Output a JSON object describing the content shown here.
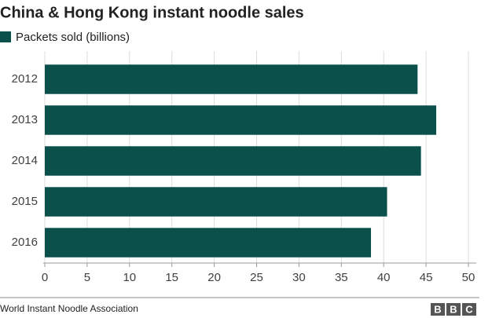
{
  "chart_data": {
    "type": "hbar",
    "title": "China & Hong Kong instant noodle sales",
    "categories": [
      "2012",
      "2013",
      "2014",
      "2015",
      "2016"
    ],
    "series": [
      {
        "name": "Packets sold (billions)",
        "color": "#0b504b",
        "values": [
          44.0,
          46.2,
          44.4,
          40.4,
          38.5
        ]
      }
    ],
    "xlim": [
      0,
      50
    ],
    "xticks": [
      0,
      5,
      10,
      15,
      20,
      25,
      30,
      35,
      40,
      45,
      50
    ],
    "grid": true,
    "legend": "top-left"
  },
  "footer": {
    "source": "World Instant Noodle Association",
    "logo": [
      "B",
      "B",
      "C"
    ]
  }
}
